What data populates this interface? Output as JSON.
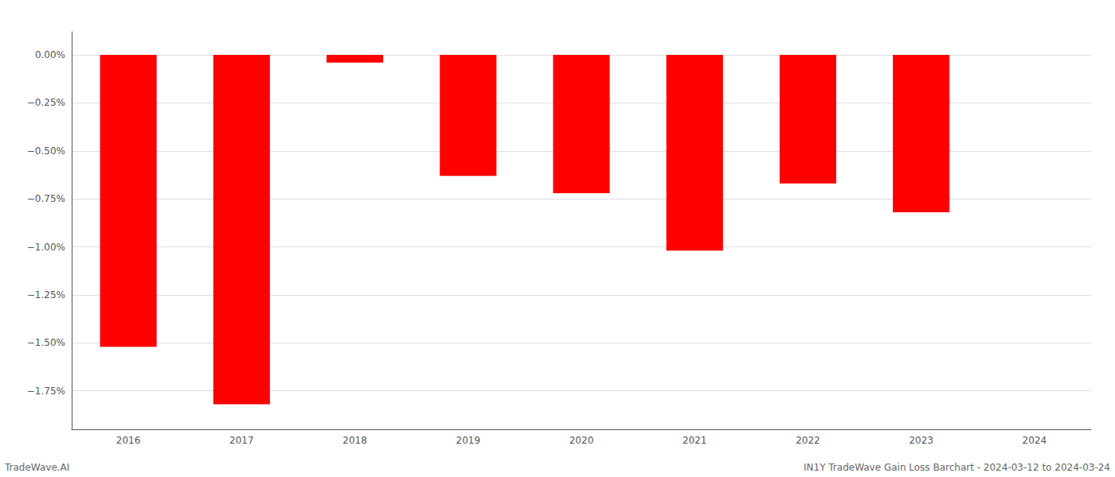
{
  "chart_data": {
    "type": "bar",
    "categories": [
      "2016",
      "2017",
      "2018",
      "2019",
      "2020",
      "2021",
      "2022",
      "2023",
      "2024"
    ],
    "values": [
      -1.52,
      -1.82,
      -0.04,
      -0.63,
      -0.72,
      -1.02,
      -0.67,
      -0.82,
      0.0
    ],
    "color": "#ff0000",
    "ylim": [
      -1.95,
      0.12
    ],
    "yticks": [
      {
        "value": 0.0,
        "label": "0.00%"
      },
      {
        "value": -0.25,
        "label": "−0.25%"
      },
      {
        "value": -0.5,
        "label": "−0.50%"
      },
      {
        "value": -0.75,
        "label": "−0.75%"
      },
      {
        "value": -1.0,
        "label": "−1.00%"
      },
      {
        "value": -1.25,
        "label": "−1.25%"
      },
      {
        "value": -1.5,
        "label": "−1.50%"
      },
      {
        "value": -1.75,
        "label": "−1.75%"
      }
    ],
    "grid": true,
    "annotations": [
      "TradeWave.AI",
      "IN1Y TradeWave Gain Loss Barchart - 2024-03-12 to 2024-03-24"
    ]
  }
}
